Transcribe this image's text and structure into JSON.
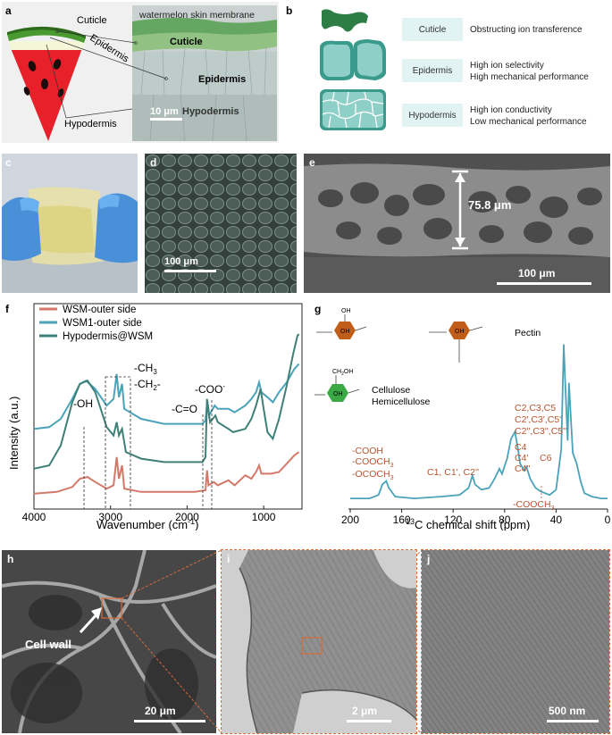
{
  "panel_a": {
    "label": "a",
    "cuticle": "Cuticle",
    "epidermis": "Epidermis",
    "hypodermis": "Hypodermis",
    "membrane_caption": "watermelon skin membrane",
    "micro_cuticle": "Cuticle",
    "micro_epidermis": "Epidermis",
    "micro_hypodermis": "Hypodermis",
    "scale_bar": "10 μm"
  },
  "panel_b": {
    "label": "b",
    "rows": [
      {
        "name": "Cuticle",
        "line1": "Obstructing ion transference",
        "line2": ""
      },
      {
        "name": "Epidermis",
        "line1": "High ion selectivity",
        "line2": "High mechanical performance"
      },
      {
        "name": "Hypodermis",
        "line1": "High ion conductivity",
        "line2": "Low mechanical performance"
      }
    ],
    "colors": {
      "cuticle": "#2e7d46",
      "cells": "#8ecfc7",
      "cells_dark": "#3a9a8c",
      "box": "#e1f3f3"
    }
  },
  "panel_c": {
    "label": "c"
  },
  "panel_d": {
    "label": "d",
    "scale_bar": "100 μm"
  },
  "panel_e": {
    "label": "e",
    "thickness": "75.8 μm",
    "scale_bar": "100 μm"
  },
  "panel_f": {
    "label": "f",
    "chart_data": {
      "type": "line",
      "xlabel": "Wavenumber (cm",
      "xlabel_sup": "-1",
      "xlabel_end": ")",
      "ylabel": "Intensity (a.u.)",
      "xlim": [
        4000,
        500
      ],
      "x_ticks": [
        "4000",
        "3000",
        "2000",
        "1000"
      ],
      "x_tick_values": [
        4000,
        3000,
        2000,
        1000
      ],
      "series": [
        {
          "name": "WSM-outer side",
          "color": "#d4796a",
          "points": [
            [
              4000,
              0.05
            ],
            [
              3700,
              0.06
            ],
            [
              3500,
              0.09
            ],
            [
              3400,
              0.14
            ],
            [
              3300,
              0.15
            ],
            [
              3200,
              0.12
            ],
            [
              3050,
              0.08
            ],
            [
              2960,
              0.1
            ],
            [
              2920,
              0.27
            ],
            [
              2890,
              0.14
            ],
            [
              2850,
              0.22
            ],
            [
              2820,
              0.08
            ],
            [
              2600,
              0.06
            ],
            [
              2200,
              0.06
            ],
            [
              1900,
              0.06
            ],
            [
              1760,
              0.07
            ],
            [
              1740,
              0.19
            ],
            [
              1720,
              0.1
            ],
            [
              1650,
              0.12
            ],
            [
              1600,
              0.1
            ],
            [
              1460,
              0.13
            ],
            [
              1380,
              0.1
            ],
            [
              1240,
              0.16
            ],
            [
              1160,
              0.14
            ],
            [
              1100,
              0.18
            ],
            [
              1060,
              0.22
            ],
            [
              1030,
              0.17
            ],
            [
              900,
              0.17
            ],
            [
              800,
              0.18
            ],
            [
              700,
              0.23
            ],
            [
              600,
              0.28
            ],
            [
              540,
              0.3
            ]
          ]
        },
        {
          "name": "WSM1-outer side",
          "color": "#4aa3b8",
          "points": [
            [
              4000,
              0.44
            ],
            [
              3800,
              0.45
            ],
            [
              3650,
              0.5
            ],
            [
              3500,
              0.62
            ],
            [
              3400,
              0.71
            ],
            [
              3320,
              0.73
            ],
            [
              3200,
              0.68
            ],
            [
              3050,
              0.58
            ],
            [
              2960,
              0.62
            ],
            [
              2920,
              0.77
            ],
            [
              2890,
              0.63
            ],
            [
              2850,
              0.71
            ],
            [
              2820,
              0.56
            ],
            [
              2600,
              0.5
            ],
            [
              2300,
              0.47
            ],
            [
              2000,
              0.47
            ],
            [
              1800,
              0.47
            ],
            [
              1760,
              0.49
            ],
            [
              1735,
              0.61
            ],
            [
              1715,
              0.52
            ],
            [
              1640,
              0.58
            ],
            [
              1600,
              0.56
            ],
            [
              1460,
              0.56
            ],
            [
              1380,
              0.54
            ],
            [
              1240,
              0.58
            ],
            [
              1160,
              0.62
            ],
            [
              1100,
              0.66
            ],
            [
              1060,
              0.72
            ],
            [
              1030,
              0.66
            ],
            [
              950,
              0.63
            ],
            [
              880,
              0.6
            ],
            [
              800,
              0.66
            ],
            [
              700,
              0.72
            ],
            [
              600,
              0.8
            ],
            [
              540,
              0.83
            ]
          ]
        },
        {
          "name": "Hypodermis@WSM",
          "color": "#3e8077",
          "points": [
            [
              4000,
              0.2
            ],
            [
              3800,
              0.22
            ],
            [
              3650,
              0.34
            ],
            [
              3500,
              0.6
            ],
            [
              3400,
              0.71
            ],
            [
              3300,
              0.73
            ],
            [
              3200,
              0.66
            ],
            [
              3050,
              0.45
            ],
            [
              2960,
              0.4
            ],
            [
              2920,
              0.48
            ],
            [
              2890,
              0.4
            ],
            [
              2850,
              0.44
            ],
            [
              2800,
              0.3
            ],
            [
              2600,
              0.26
            ],
            [
              2300,
              0.24
            ],
            [
              2000,
              0.24
            ],
            [
              1800,
              0.24
            ],
            [
              1760,
              0.27
            ],
            [
              1740,
              0.62
            ],
            [
              1700,
              0.48
            ],
            [
              1630,
              0.52
            ],
            [
              1600,
              0.48
            ],
            [
              1460,
              0.44
            ],
            [
              1400,
              0.42
            ],
            [
              1240,
              0.44
            ],
            [
              1160,
              0.5
            ],
            [
              1100,
              0.58
            ],
            [
              1040,
              0.68
            ],
            [
              1000,
              0.56
            ],
            [
              950,
              0.42
            ],
            [
              880,
              0.38
            ],
            [
              800,
              0.5
            ],
            [
              700,
              0.7
            ],
            [
              620,
              0.88
            ],
            [
              560,
              1.0
            ],
            [
              540,
              1.01
            ]
          ]
        }
      ],
      "annotations": {
        "oh": "-OH",
        "ch3": "-CH",
        "ch3_sub": "3",
        "ch2": "-CH",
        "ch2_sub": "2",
        "ch_dash": "-",
        "co": "-C=O",
        "coo": "-COO",
        "coo_sup": "-"
      },
      "legend_position": "top-left"
    }
  },
  "panel_g": {
    "label": "g",
    "chart_data": {
      "type": "line",
      "xlabel_sup": "13",
      "xlabel": "C chemical shift (ppm)",
      "xlim": [
        200,
        0
      ],
      "x_ticks": [
        "200",
        "160",
        "120",
        "80",
        "40",
        "0"
      ],
      "x_tick_values": [
        200,
        160,
        120,
        80,
        40,
        0
      ],
      "color": "#4aa3b8",
      "points": [
        [
          200,
          0.02
        ],
        [
          185,
          0.02
        ],
        [
          178,
          0.04
        ],
        [
          175,
          0.1
        ],
        [
          172,
          0.12
        ],
        [
          170,
          0.08
        ],
        [
          165,
          0.03
        ],
        [
          150,
          0.02
        ],
        [
          130,
          0.03
        ],
        [
          115,
          0.04
        ],
        [
          108,
          0.08
        ],
        [
          105,
          0.15
        ],
        [
          103,
          0.1
        ],
        [
          98,
          0.07
        ],
        [
          92,
          0.08
        ],
        [
          88,
          0.13
        ],
        [
          84,
          0.19
        ],
        [
          82,
          0.16
        ],
        [
          78,
          0.25
        ],
        [
          75,
          0.36
        ],
        [
          72,
          0.4
        ],
        [
          70,
          0.32
        ],
        [
          68,
          0.22
        ],
        [
          65,
          0.18
        ],
        [
          63,
          0.2
        ],
        [
          60,
          0.13
        ],
        [
          56,
          0.08
        ],
        [
          52,
          0.06
        ],
        [
          45,
          0.04
        ],
        [
          40,
          0.07
        ],
        [
          36,
          0.3
        ],
        [
          34,
          0.9
        ],
        [
          33,
          0.7
        ],
        [
          31,
          0.35
        ],
        [
          30,
          0.68
        ],
        [
          29,
          0.55
        ],
        [
          27,
          0.28
        ],
        [
          24,
          0.22
        ],
        [
          21,
          0.12
        ],
        [
          18,
          0.05
        ],
        [
          12,
          0.03
        ],
        [
          5,
          0.02
        ],
        [
          0,
          0.02
        ]
      ]
    },
    "pectin": "Pectin",
    "cellulose": "Cellulose",
    "hemicellulose": "Hemicellulose",
    "ann_cooh": "-COOH",
    "ann_cooch3": "-COOCH",
    "ann_cooch3_sub": "3",
    "ann_ococh3": "-OCOCH",
    "ann_ococh3_sub": "3",
    "ann_c1": "C1, C1', C2''",
    "ann_c2_1": "C2,C3,C5",
    "ann_c2_2": "C2',C3',C5'",
    "ann_c2_3": "C2'',C3'',C5''",
    "ann_c4_1": "C4",
    "ann_c4_2": "C4'",
    "ann_c4_3": "C4''",
    "ann_c6": "C6",
    "ann_c6_cooch3": "-COOCH",
    "ann_c6_cooch3_sub": "3",
    "ring_pectin_top": "OH",
    "ring_ch2oh": "CH",
    "ring_ch2oh_sub": "2",
    "ring_ch2oh_end": "OH",
    "colors": {
      "orange": "#c05d18",
      "green": "#39a845",
      "label": "#b9532e"
    }
  },
  "panel_h": {
    "label": "h",
    "cell_wall": "Cell wall",
    "scale_bar": "20 μm"
  },
  "panel_i": {
    "label": "i",
    "scale_bar": "2 μm"
  },
  "panel_j": {
    "label": "j",
    "scale_bar": "500 nm"
  }
}
